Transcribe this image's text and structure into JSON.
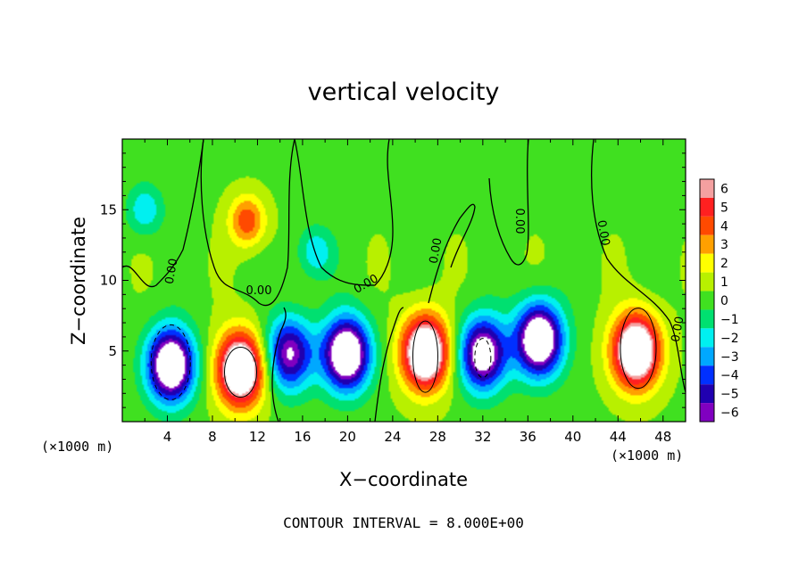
{
  "chart_data": {
    "type": "heatmap",
    "title": "vertical velocity",
    "xlabel": "X−coordinate",
    "ylabel": "Z−coordinate",
    "x_unit": "(×1000 m)",
    "x_unit_right": "(×1000 m)",
    "xlim": [
      0,
      50
    ],
    "ylim": [
      0,
      20
    ],
    "x_ticks": [
      4,
      8,
      12,
      16,
      20,
      24,
      28,
      32,
      36,
      40,
      44,
      48
    ],
    "y_ticks": [
      5,
      10,
      15
    ],
    "note": "CONTOUR INTERVAL = 8.000E+00",
    "contour_label": "0.00",
    "colorbar": {
      "levels": [
        6,
        5,
        4,
        3,
        2,
        1,
        0,
        -1,
        -2,
        -3,
        -4,
        -5,
        -6
      ],
      "labels": [
        "6",
        "5",
        "4",
        "3",
        "2",
        "1",
        "0",
        "−1",
        "−2",
        "−3",
        "−4",
        "−5",
        "−6"
      ],
      "colors": [
        "#f4a0a0",
        "#ff2020",
        "#ff4a00",
        "#ffa000",
        "#ffff00",
        "#b8f000",
        "#40e020",
        "#00e070",
        "#00f0f0",
        "#00a8ff",
        "#0030ff",
        "#2000b0",
        "#8000c0"
      ]
    },
    "anomalies": [
      {
        "x": 4.3,
        "z": 4.0,
        "w": -7
      },
      {
        "x": 10.5,
        "z": 3.7,
        "w": 7
      },
      {
        "x": 14.8,
        "z": 4.8,
        "w": -5
      },
      {
        "x": 19.9,
        "z": 4.8,
        "w": -7
      },
      {
        "x": 26.9,
        "z": 4.9,
        "w": 7
      },
      {
        "x": 32.0,
        "z": 4.8,
        "w": -6
      },
      {
        "x": 37.0,
        "z": 5.8,
        "w": -7
      },
      {
        "x": 45.6,
        "z": 5.0,
        "w": 7
      },
      {
        "x": 11.1,
        "z": 14.2,
        "w": 3
      },
      {
        "x": 17.1,
        "z": 12.0,
        "w": -2
      },
      {
        "x": 2.0,
        "z": 15.0,
        "w": -2
      }
    ],
    "background_w": 0.3
  }
}
